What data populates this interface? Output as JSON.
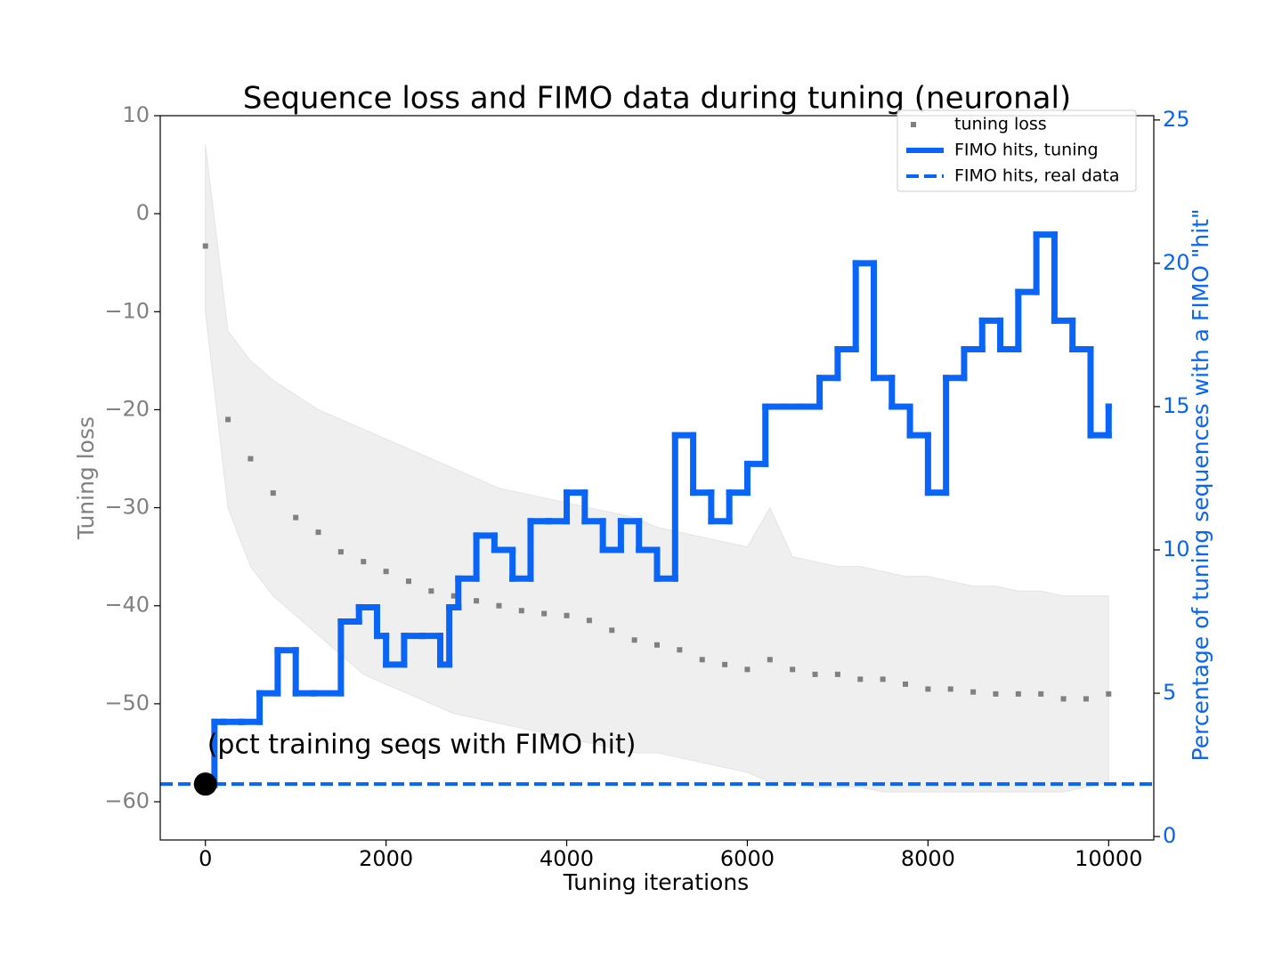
{
  "chart_data": {
    "type": "dual-axis-line",
    "title": "Sequence loss and FIMO data during tuning (neuronal)",
    "x_label": "Tuning iterations",
    "y_label": "Tuning loss",
    "y2_label": "Percentage of tuning sequences with a FIMO \"hit\"",
    "annotation": "(pct training seqs with FIMO hit)",
    "xlim": [
      -500,
      10500
    ],
    "xticks": [
      0,
      2000,
      4000,
      6000,
      8000,
      10000
    ],
    "ylim": [
      -63.9,
      10
    ],
    "yticks": [
      {
        "value": -60,
        "label": "−60"
      },
      {
        "value": -50,
        "label": "−50"
      },
      {
        "value": -40,
        "label": "−40"
      },
      {
        "value": -30,
        "label": "−30"
      },
      {
        "value": -20,
        "label": "−20"
      },
      {
        "value": -10,
        "label": "−10"
      },
      0,
      10
    ],
    "y2lim": [
      -0.12,
      25.15
    ],
    "y2ticks": [
      0,
      5,
      10,
      15,
      20,
      25
    ],
    "legend": "upper right",
    "series": [
      {
        "name": "tuning loss",
        "color": "#808080",
        "style": "dotted",
        "x": [
          0,
          250,
          500,
          750,
          1000,
          1250,
          1500,
          1750,
          2000,
          2250,
          2500,
          2750,
          3000,
          3250,
          3500,
          3750,
          4000,
          4250,
          4500,
          4750,
          5000,
          5250,
          5500,
          5750,
          6000,
          6250,
          6500,
          6750,
          7000,
          7250,
          7500,
          7750,
          8000,
          8250,
          8500,
          8750,
          9000,
          9250,
          9500,
          9750,
          10000
        ],
        "values": [
          -3.3,
          -21,
          -25,
          -28.5,
          -31,
          -32.5,
          -34.5,
          -35.5,
          -36.5,
          -37.5,
          -38.5,
          -39,
          -39.5,
          -40,
          -40.5,
          -40.8,
          -41,
          -41.5,
          -42.5,
          -43.5,
          -44,
          -44.5,
          -45.5,
          -46,
          -46.5,
          -45.5,
          -46.5,
          -47,
          -47,
          -47.5,
          -47.5,
          -48,
          -48.5,
          -48.5,
          -48.8,
          -49,
          -49,
          -49,
          -49.5,
          -49.5,
          -49
        ],
        "band_upper": [
          7,
          -12,
          -15,
          -17,
          -18.5,
          -20,
          -21,
          -22,
          -23,
          -24,
          -25,
          -26,
          -27,
          -28,
          -28.5,
          -29,
          -29.5,
          -30,
          -30.5,
          -31,
          -32,
          -32.5,
          -33,
          -33.5,
          -34,
          -30,
          -35,
          -35.5,
          -36,
          -36,
          -36.5,
          -37,
          -37,
          -37.5,
          -38,
          -38,
          -38.5,
          -38.5,
          -39,
          -39,
          -39
        ],
        "band_lower": [
          -10,
          -30,
          -36,
          -39,
          -41,
          -43,
          -45,
          -47,
          -48,
          -49,
          -50,
          -51,
          -51.5,
          -52,
          -52.5,
          -53,
          -53.5,
          -54,
          -54.5,
          -55,
          -55,
          -55.5,
          -56,
          -56.5,
          -57,
          -58,
          -58,
          -58.5,
          -58.5,
          -58.5,
          -59,
          -59,
          -59,
          -59,
          -59,
          -59,
          -59,
          -59,
          -59,
          -58.5,
          -58
        ]
      },
      {
        "name": "FIMO hits, tuning",
        "color": "#0a64f5",
        "style": "step",
        "axis": "y2",
        "x": [
          0,
          100,
          200,
          400,
          600,
          800,
          1000,
          1200,
          1500,
          1700,
          1900,
          2000,
          2200,
          2400,
          2600,
          2700,
          2800,
          3000,
          3200,
          3400,
          3600,
          3800,
          4000,
          4200,
          4400,
          4600,
          4800,
          5000,
          5200,
          5400,
          5600,
          5800,
          6000,
          6200,
          6400,
          6600,
          6800,
          7000,
          7200,
          7400,
          7600,
          7800,
          8000,
          8200,
          8400,
          8600,
          8800,
          9000,
          9200,
          9400,
          9600,
          9800,
          10000
        ],
        "values": [
          1.8,
          4,
          4,
          4,
          5,
          6.5,
          5,
          5,
          7.5,
          8,
          7,
          6,
          7,
          7,
          6,
          8,
          9,
          10.5,
          10,
          9,
          11,
          11,
          12,
          11,
          10,
          11,
          10,
          9,
          14,
          12,
          11,
          12,
          13,
          15,
          15,
          15,
          16,
          17,
          20,
          16,
          15,
          14,
          12,
          16,
          17,
          18,
          17,
          19,
          21,
          18,
          17,
          14,
          15
        ]
      },
      {
        "name": "FIMO hits, real data",
        "color": "#0a64f5",
        "style": "dashed",
        "axis": "y2",
        "values": [
          1.83
        ]
      }
    ]
  }
}
